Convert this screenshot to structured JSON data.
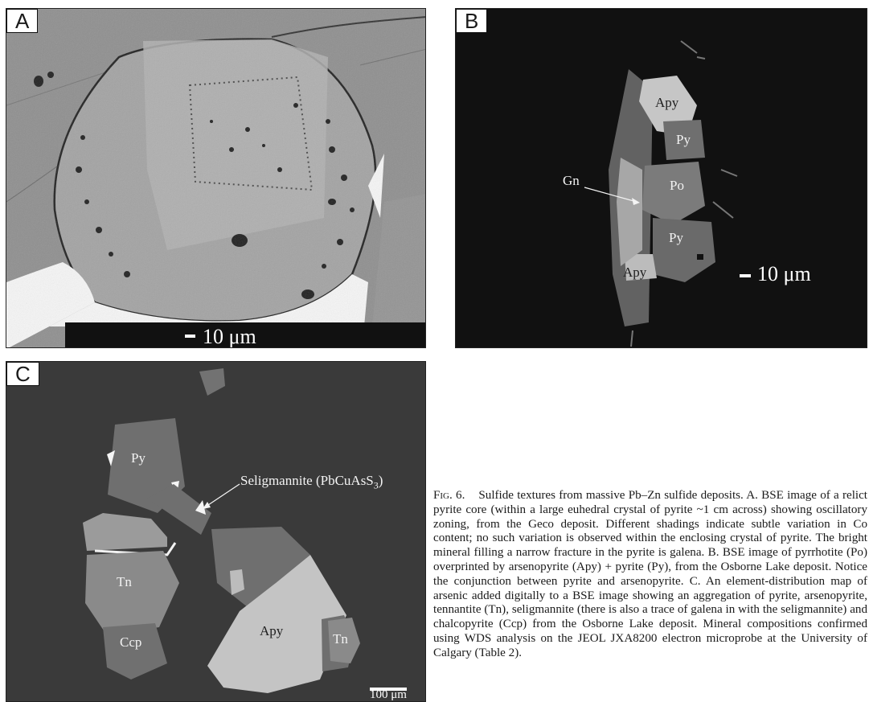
{
  "panels": {
    "a": {
      "label": "A",
      "scale_text": "10 μm"
    },
    "b": {
      "label": "B",
      "scale_text": "10 μm",
      "minerals": [
        "Apy",
        "Py",
        "Po",
        "Py",
        "Apy"
      ],
      "callout": "Gn"
    },
    "c": {
      "label": "C",
      "scale_text": "100 μm",
      "minerals": [
        "Py",
        "Tn",
        "Ccp",
        "Apy",
        "Tn"
      ],
      "callout_main": "Seligmannite (PbCuAsS",
      "callout_sub": "3",
      "callout_end": ")"
    }
  },
  "caption": {
    "fig_label": "Fig. 6.",
    "text": "Sulfide textures from massive Pb–Zn sulfide deposits. A. BSE image of a relict pyrite core (within a large euhedral crystal of pyrite ~1 cm across) showing oscillatory zoning, from the Geco deposit. Different shadings indicate subtle variation in Co content; no such variation is observed within the enclosing crystal of pyrite. The bright mineral filling a narrow fracture in the pyrite is galena. B. BSE image of pyrrhotite (Po) overprinted by arsenopyrite (Apy) + pyrite (Py), from the Osborne Lake deposit. Notice the conjunction between pyrite and arsenopyrite. C. An element-distribution map of arsenic added digitally to a BSE image showing an aggregation of pyrite, arsenopyrite, tennantite (Tn), seligmannite (there is also a trace of galena in with the seligmannite) and chalcopyrite (Ccp) from the Osborne Lake deposit. Mineral compositions confirmed using WDS analysis on the JEOL JXA8200 electron microprobe at the University of Calgary (Table 2)."
  },
  "colors": {
    "panel_a_background": "#8f8f8f",
    "panel_b_background": "#111111",
    "panel_c_background": "#3a3a3a",
    "arsenopyrite": "#c9c9c9",
    "pyrite": "#6f6f6f",
    "tennantite": "#8a8a8a"
  }
}
